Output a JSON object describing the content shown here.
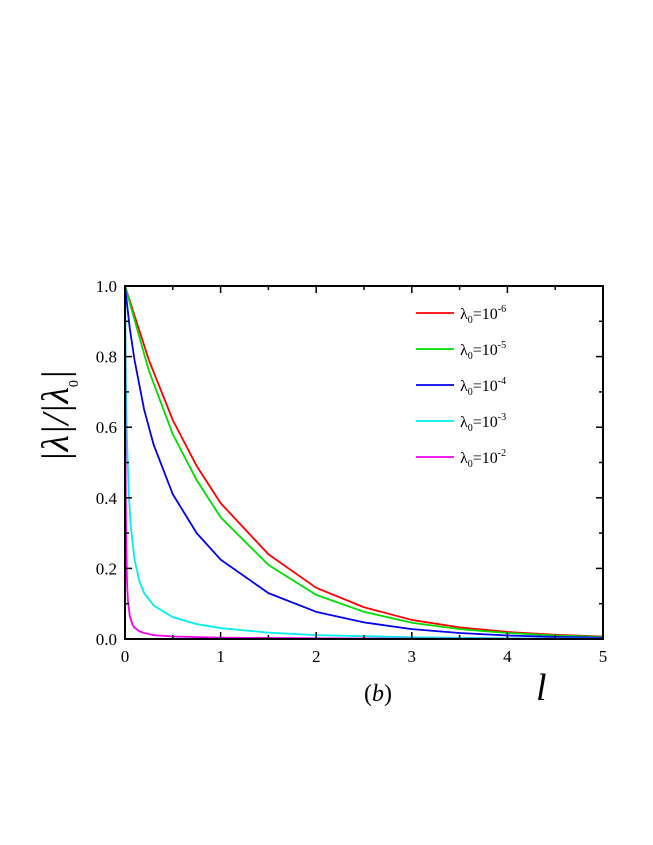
{
  "chart_data": {
    "type": "line",
    "xlabel": "l",
    "ylabel": "|λ|/|λ0|",
    "ylabel_parts": {
      "lam1": "λ",
      "lam2": "λ",
      "sub0": "0"
    },
    "panel_label": {
      "open": "(",
      "letter": "b",
      "close": ")"
    },
    "xlim": [
      0,
      5
    ],
    "ylim": [
      0,
      1.0
    ],
    "x_ticks": [
      "0",
      "1",
      "2",
      "3",
      "4",
      "5"
    ],
    "y_ticks": [
      "0.0",
      "0.2",
      "0.4",
      "0.6",
      "0.8",
      "1.0"
    ],
    "legend_position": "top-right",
    "grid": false,
    "series": [
      {
        "name": "λ0=10-6",
        "legend": {
          "lam": "λ",
          "sub": "0",
          "eq": "=10",
          "exp": "-6"
        },
        "color": "#ff0000",
        "x": [
          0,
          0.25,
          0.5,
          0.75,
          1,
          1.5,
          2,
          2.5,
          3,
          3.5,
          4,
          4.5,
          5
        ],
        "y": [
          1.0,
          0.79,
          0.62,
          0.49,
          0.385,
          0.24,
          0.145,
          0.09,
          0.054,
          0.033,
          0.02,
          0.012,
          0.007
        ]
      },
      {
        "name": "λ0=10-5",
        "legend": {
          "lam": "λ",
          "sub": "0",
          "eq": "=10",
          "exp": "-5"
        },
        "color": "#00dd00",
        "x": [
          0,
          0.25,
          0.5,
          0.75,
          1,
          1.5,
          2,
          2.5,
          3,
          3.5,
          4,
          4.5,
          5
        ],
        "y": [
          1.0,
          0.76,
          0.58,
          0.45,
          0.345,
          0.21,
          0.125,
          0.077,
          0.046,
          0.028,
          0.017,
          0.01,
          0.006
        ]
      },
      {
        "name": "λ0=10-4",
        "legend": {
          "lam": "λ",
          "sub": "0",
          "eq": "=10",
          "exp": "-4"
        },
        "color": "#0000ee",
        "x": [
          0,
          0.05,
          0.1,
          0.2,
          0.3,
          0.5,
          0.75,
          1,
          1.5,
          2,
          2.5,
          3,
          3.5,
          4,
          4.5,
          5
        ],
        "y": [
          1.0,
          0.88,
          0.79,
          0.65,
          0.55,
          0.41,
          0.3,
          0.225,
          0.13,
          0.077,
          0.047,
          0.028,
          0.017,
          0.01,
          0.006,
          0.004
        ]
      },
      {
        "name": "λ0=10-3",
        "legend": {
          "lam": "λ",
          "sub": "0",
          "eq": "=10",
          "exp": "-3"
        },
        "color": "#00eeee",
        "x": [
          0,
          0.01,
          0.02,
          0.04,
          0.06,
          0.1,
          0.15,
          0.2,
          0.3,
          0.5,
          0.75,
          1,
          1.5,
          2,
          3,
          4,
          5
        ],
        "y": [
          1.0,
          0.72,
          0.57,
          0.41,
          0.32,
          0.225,
          0.165,
          0.13,
          0.095,
          0.062,
          0.042,
          0.031,
          0.018,
          0.011,
          0.005,
          0.002,
          0.001
        ]
      },
      {
        "name": "λ0=10-2",
        "legend": {
          "lam": "λ",
          "sub": "0",
          "eq": "=10",
          "exp": "-2"
        },
        "color": "#ee00ee",
        "x": [
          0,
          0.005,
          0.01,
          0.02,
          0.03,
          0.05,
          0.08,
          0.1,
          0.15,
          0.2,
          0.3,
          0.5,
          1,
          2,
          3,
          5
        ],
        "y": [
          1.0,
          0.55,
          0.33,
          0.17,
          0.11,
          0.065,
          0.04,
          0.032,
          0.022,
          0.017,
          0.011,
          0.007,
          0.004,
          0.002,
          0.001,
          0.0005
        ]
      }
    ]
  }
}
